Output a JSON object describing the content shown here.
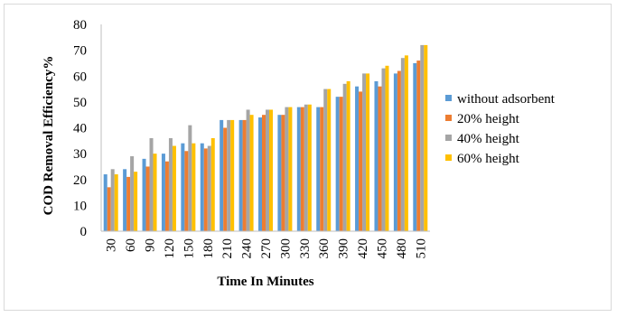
{
  "chart_data": {
    "type": "bar",
    "xlabel": "Time In Minutes",
    "ylabel": "COD  Removal Efficiency%",
    "ylim": [
      0,
      80
    ],
    "yticks": [
      0,
      10,
      20,
      30,
      40,
      50,
      60,
      70,
      80
    ],
    "grid": false,
    "legend_position": "right",
    "categories": [
      "30",
      "60",
      "90",
      "120",
      "150",
      "180",
      "210",
      "240",
      "270",
      "300",
      "330",
      "360",
      "390",
      "420",
      "450",
      "480",
      "510"
    ],
    "series": [
      {
        "name": "without adsorbent",
        "color": "#5b9bd5",
        "values": [
          22,
          24,
          28,
          30,
          34,
          34,
          43,
          43,
          44,
          45,
          48,
          48,
          52,
          56,
          58,
          61,
          65
        ]
      },
      {
        "name": "20% height",
        "color": "#ed7d31",
        "values": [
          17,
          21,
          25,
          27,
          31,
          32,
          40,
          43,
          45,
          45,
          48,
          48,
          52,
          54,
          56,
          62,
          66
        ]
      },
      {
        "name": "40% height",
        "color": "#a5a5a5",
        "values": [
          24,
          29,
          36,
          36,
          41,
          33,
          43,
          47,
          47,
          48,
          49,
          55,
          57,
          61,
          63,
          67,
          72
        ]
      },
      {
        "name": "60% height",
        "color": "#ffc000",
        "values": [
          22,
          23,
          30,
          33,
          34,
          36,
          43,
          45,
          47,
          48,
          49,
          55,
          58,
          61,
          64,
          68,
          72
        ]
      }
    ]
  }
}
